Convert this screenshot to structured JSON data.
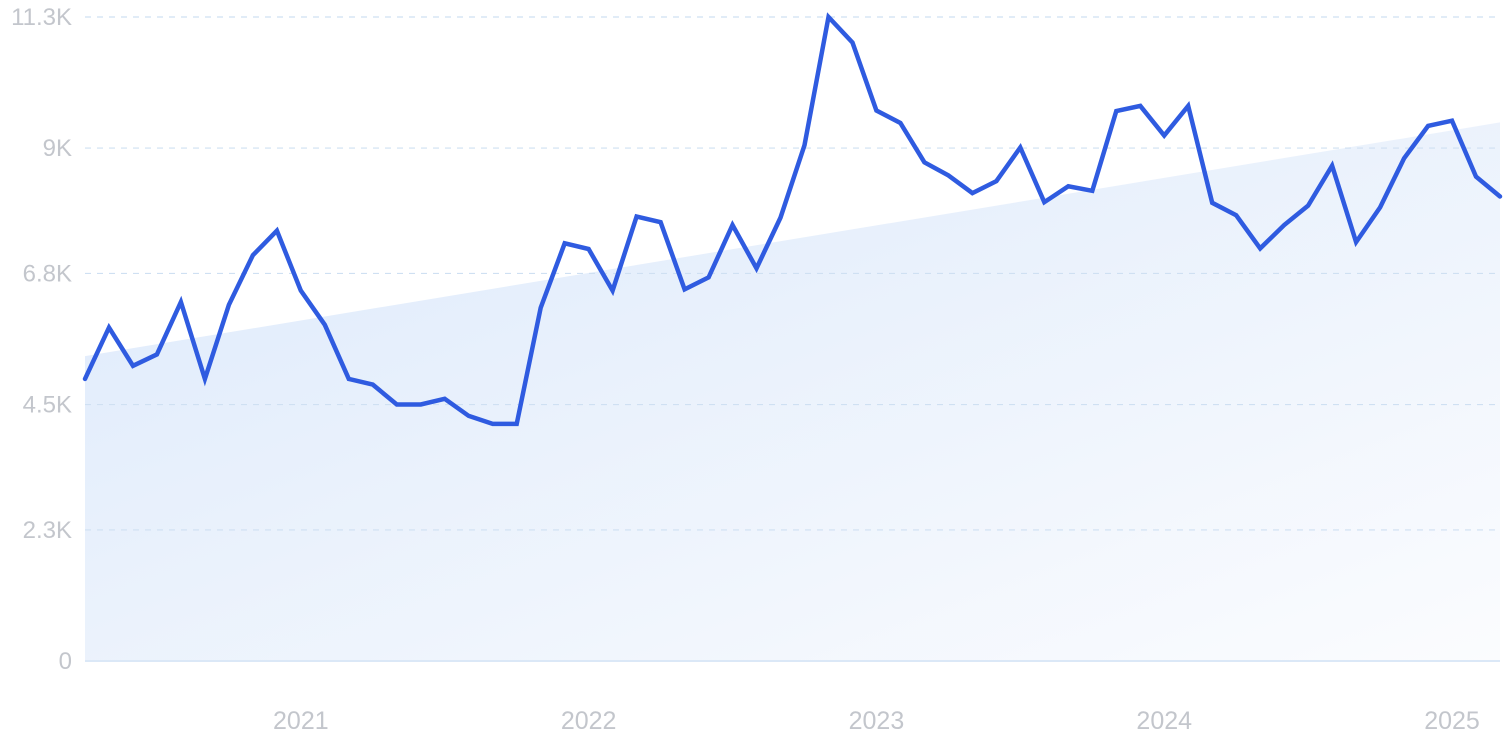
{
  "colors": {
    "line": "#2f5be0",
    "area_start": "#dce9fb",
    "area_end": "#fbfcfe",
    "grid": "#cfe0f2",
    "baseline": "#dbe8f7",
    "tick_text": "#c3c6cc"
  },
  "chart_data": {
    "type": "line",
    "title": "",
    "xlabel": "",
    "ylabel": "",
    "grid": true,
    "ylim": [
      0,
      11300
    ],
    "xlim": [
      "2020-04",
      "2025-03"
    ],
    "y_ticks": [
      {
        "value": 0,
        "label": "0"
      },
      {
        "value": 2300,
        "label": "2.3K"
      },
      {
        "value": 4500,
        "label": "4.5K"
      },
      {
        "value": 6800,
        "label": "6.8K"
      },
      {
        "value": 9000,
        "label": "9K"
      },
      {
        "value": 11300,
        "label": "11.3K"
      }
    ],
    "x_ticks": [
      {
        "value": "2021-01",
        "label": "2021"
      },
      {
        "value": "2022-01",
        "label": "2022"
      },
      {
        "value": "2023-01",
        "label": "2023"
      },
      {
        "value": "2024-01",
        "label": "2024"
      },
      {
        "value": "2025-01",
        "label": "2025"
      }
    ],
    "trend": {
      "x": [
        "2020-04",
        "2025-03"
      ],
      "y": [
        5350,
        9450
      ]
    },
    "series": [
      {
        "x": [
          "2020-04",
          "2020-05",
          "2020-06",
          "2020-07",
          "2020-08",
          "2020-09",
          "2020-10",
          "2020-11",
          "2020-12",
          "2021-01",
          "2021-02",
          "2021-03",
          "2021-04",
          "2021-05",
          "2021-06",
          "2021-07",
          "2021-08",
          "2021-09",
          "2021-10",
          "2021-11",
          "2021-12",
          "2022-01",
          "2022-02",
          "2022-03",
          "2022-04",
          "2022-05",
          "2022-06",
          "2022-07",
          "2022-08",
          "2022-09",
          "2022-10",
          "2022-11",
          "2022-12",
          "2023-01",
          "2023-02",
          "2023-03",
          "2023-04",
          "2023-05",
          "2023-06",
          "2023-07",
          "2023-08",
          "2023-09",
          "2023-10",
          "2023-11",
          "2023-12",
          "2024-01",
          "2024-02",
          "2024-03",
          "2024-04",
          "2024-05",
          "2024-06",
          "2024-07",
          "2024-08",
          "2024-09",
          "2024-10",
          "2024-11",
          "2024-12",
          "2025-01",
          "2025-02",
          "2025-03"
        ],
        "values": [
          4950,
          5850,
          5180,
          5380,
          6300,
          4950,
          6250,
          7120,
          7550,
          6500,
          5900,
          4950,
          4850,
          4500,
          4500,
          4600,
          4300,
          4160,
          4160,
          6200,
          7330,
          7230,
          6500,
          7800,
          7700,
          6520,
          6730,
          7650,
          6890,
          7780,
          9050,
          11300,
          10850,
          9660,
          9440,
          8750,
          8520,
          8210,
          8420,
          9010,
          8050,
          8330,
          8250,
          9650,
          9740,
          9220,
          9740,
          8040,
          7820,
          7240,
          7650,
          7990,
          8690,
          7350,
          7960,
          8820,
          9390,
          9480,
          8500,
          8150
        ]
      }
    ]
  }
}
